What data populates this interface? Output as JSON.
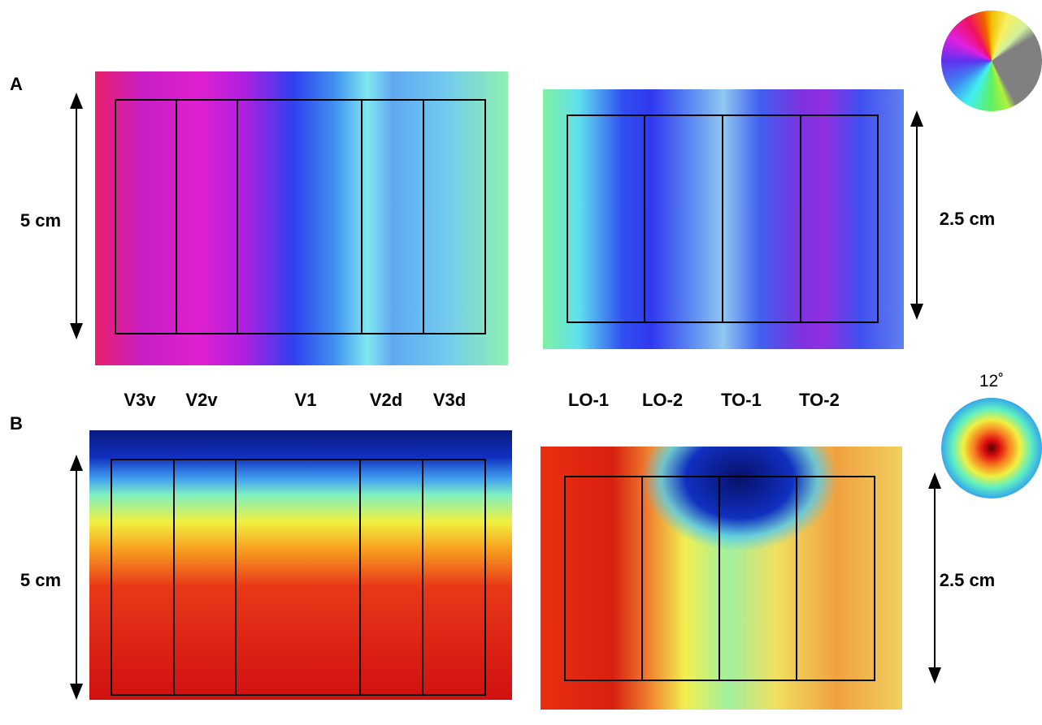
{
  "panels": {
    "A": {
      "label": "A",
      "scale_left": "5 cm",
      "scale_right": "2.5 cm"
    },
    "B": {
      "label": "B",
      "scale_left": "5 cm",
      "scale_right": "2.5 cm"
    }
  },
  "regions_left": [
    "V3v",
    "V2v",
    "V1",
    "V2d",
    "V3d"
  ],
  "regions_right": [
    "LO-1",
    "LO-2",
    "TO-1",
    "TO-2"
  ],
  "eccentricity_legend": "12˚"
}
